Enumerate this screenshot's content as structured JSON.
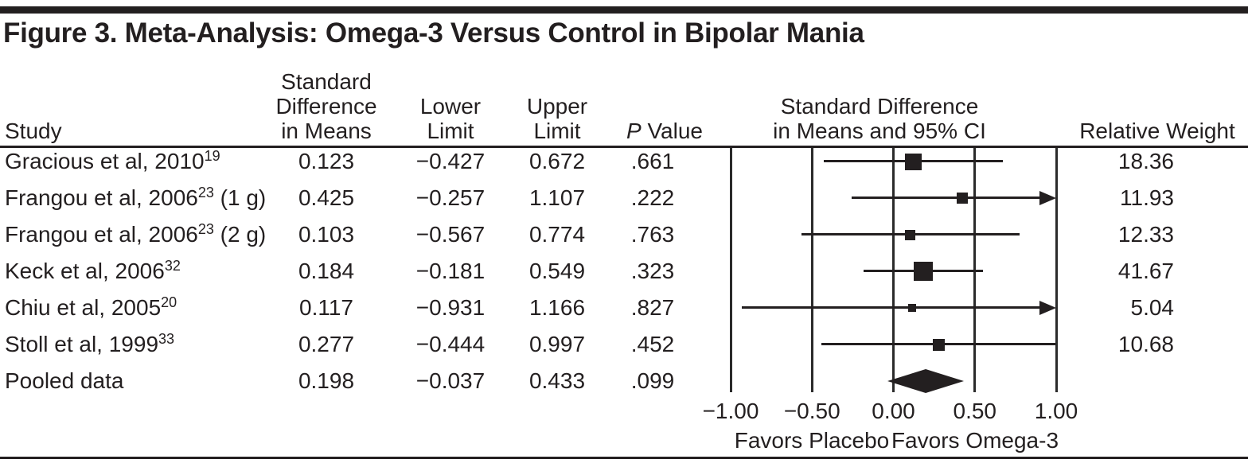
{
  "figure": {
    "title": "Figure 3. Meta-Analysis: Omega-3 Versus Control in Bipolar Mania"
  },
  "table": {
    "headers": {
      "study": "Study",
      "sdm_lines": [
        "Standard",
        "Difference",
        "in Means"
      ],
      "lower_lines": [
        "Lower",
        "Limit"
      ],
      "upper_lines": [
        "Upper",
        "Limit"
      ],
      "p_italic": "P",
      "p_rest": " Value",
      "ci_lines": [
        "Standard Difference",
        "in Means and 95% CI"
      ],
      "weight": "Relative Weight"
    }
  },
  "chart_data": {
    "type": "forest",
    "x_axis": {
      "min": -1.0,
      "max": 1.0,
      "ticks": [
        -1.0,
        -0.5,
        0.0,
        0.5,
        1.0
      ],
      "tick_labels": [
        "−1.00",
        "−0.50",
        "0.00",
        "0.50",
        "1.00"
      ]
    },
    "footer_labels": {
      "left": "Favors Placebo",
      "right": "Favors Omega-3"
    },
    "studies": [
      {
        "name": "Gracious et al, 2010",
        "ref": "19",
        "dose": "",
        "sdm": "0.123",
        "lower": "−0.427",
        "upper": "0.672",
        "p": ".661",
        "weight": "18.36",
        "sdm_value": 0.123,
        "lower_value": -0.427,
        "upper_value": 0.672,
        "marker_size_px": 21,
        "pooled": false
      },
      {
        "name": "Frangou et al, 2006",
        "ref": "23",
        "dose": " (1 g)",
        "sdm": "0.425",
        "lower": "−0.257",
        "upper": "1.107",
        "p": ".222",
        "weight": "11.93",
        "sdm_value": 0.425,
        "lower_value": -0.257,
        "upper_value": 1.107,
        "marker_size_px": 14,
        "pooled": false
      },
      {
        "name": "Frangou et al, 2006",
        "ref": "23",
        "dose": " (2 g)",
        "sdm": "0.103",
        "lower": "−0.567",
        "upper": "0.774",
        "p": ".763",
        "weight": "12.33",
        "sdm_value": 0.103,
        "lower_value": -0.567,
        "upper_value": 0.774,
        "marker_size_px": 13,
        "pooled": false
      },
      {
        "name": "Keck et al, 2006",
        "ref": "32",
        "dose": "",
        "sdm": "0.184",
        "lower": "−0.181",
        "upper": "0.549",
        "p": ".323",
        "weight": "41.67",
        "sdm_value": 0.184,
        "lower_value": -0.181,
        "upper_value": 0.549,
        "marker_size_px": 24,
        "pooled": false
      },
      {
        "name": "Chiu et al, 2005",
        "ref": "20",
        "dose": "",
        "sdm": "0.117",
        "lower": "−0.931",
        "upper": "1.166",
        "p": ".827",
        "weight": "5.04",
        "sdm_value": 0.117,
        "lower_value": -0.931,
        "upper_value": 1.166,
        "marker_size_px": 10,
        "pooled": false
      },
      {
        "name": "Stoll et al, 1999",
        "ref": "33",
        "dose": "",
        "sdm": "0.277",
        "lower": "−0.444",
        "upper": "0.997",
        "p": ".452",
        "weight": "10.68",
        "sdm_value": 0.277,
        "lower_value": -0.444,
        "upper_value": 0.997,
        "marker_size_px": 15,
        "pooled": false
      },
      {
        "name": "Pooled data",
        "ref": "",
        "dose": "",
        "sdm": "0.198",
        "lower": "−0.037",
        "upper": "0.433",
        "p": ".099",
        "weight": "",
        "sdm_value": 0.198,
        "lower_value": -0.037,
        "upper_value": 0.433,
        "marker_size_px": 0,
        "pooled": true
      }
    ]
  },
  "colors": {
    "ink": "#231f20",
    "background": "#ffffff"
  }
}
